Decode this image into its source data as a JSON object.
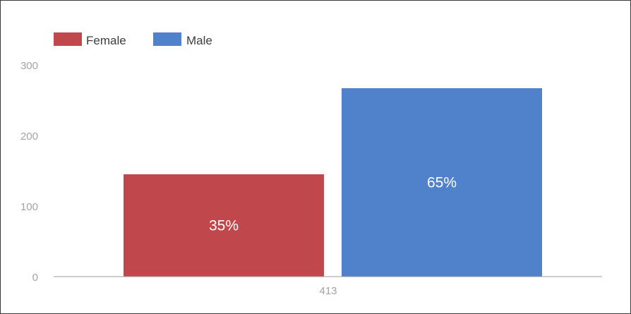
{
  "chart_data": {
    "type": "bar",
    "categories": [
      "413"
    ],
    "series": [
      {
        "name": "Female",
        "values": [
          145
        ],
        "label": "35%",
        "color": "#c0474c"
      },
      {
        "name": "Male",
        "values": [
          267
        ],
        "label": "65%",
        "color": "#4f82cb"
      }
    ],
    "y_ticks": [
      "0",
      "100",
      "200",
      "300"
    ],
    "ylim": [
      0,
      300
    ],
    "grid": false,
    "legend_position": "top-left",
    "title": "",
    "xlabel": "",
    "ylabel": ""
  }
}
